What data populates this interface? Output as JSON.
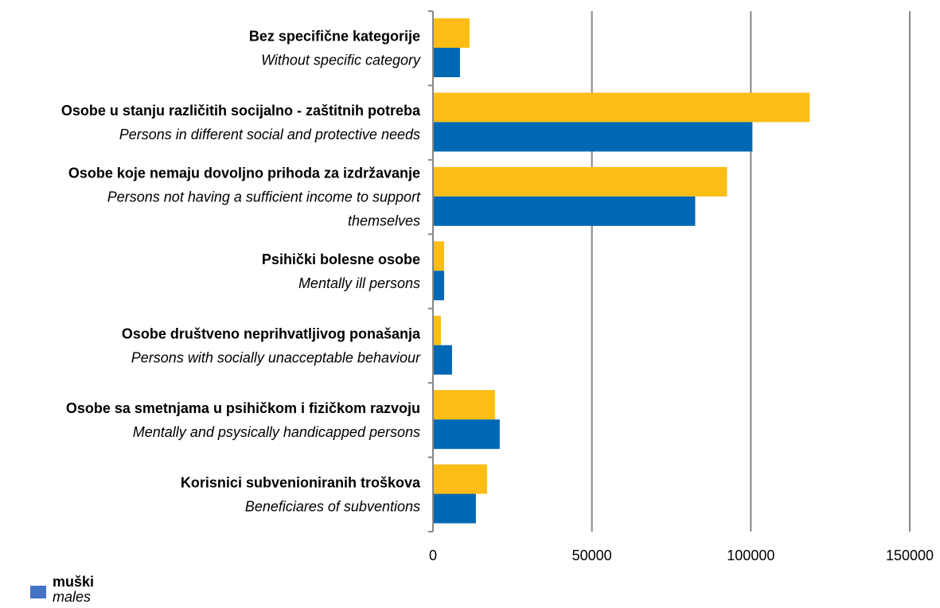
{
  "chart_data": {
    "type": "bar",
    "orientation": "horizontal",
    "categories": [
      {
        "main": "Bez specifične kategorije",
        "sub": [
          "Without specific category"
        ]
      },
      {
        "main": "Osobe u stanju različitih socijalno - zaštitnih potreba",
        "sub": [
          "Persons in different social and protective needs"
        ]
      },
      {
        "main": "Osobe koje nemaju dovoljno prihoda za izdržavanje",
        "sub": [
          "Persons not having a sufficient income to support",
          "themselves"
        ]
      },
      {
        "main": "Psihički bolesne osobe",
        "sub": [
          "Mentally ill persons"
        ]
      },
      {
        "main": "Osobe društveno neprihvatljivog ponašanja",
        "sub": [
          "Persons with socially unacceptable behaviour"
        ]
      },
      {
        "main": "Osobe sa smetnjama u psihičkom i fizičkom razvoju",
        "sub": [
          "Mentally and psysically handicapped persons"
        ]
      },
      {
        "main": "Korisnici subvenioniranih troškova",
        "sub": [
          "Beneficiares of subventions"
        ]
      }
    ],
    "series": [
      {
        "color": "#FDBD14",
        "values": [
          11500,
          118500,
          92500,
          3500,
          2500,
          19500,
          17000
        ]
      },
      {
        "name": "muški / males",
        "color": "#0068B4",
        "values": [
          8500,
          100500,
          82500,
          3500,
          6000,
          21000,
          13500
        ]
      }
    ],
    "xlim": [
      0,
      150000
    ],
    "xticks": [
      0,
      50000,
      100000,
      150000
    ],
    "xtick_labels": [
      "0",
      "50000",
      "100000",
      "150000"
    ],
    "grid": true,
    "legend_placement": "bottom-left"
  },
  "legend": {
    "main": "muški",
    "sub": "males",
    "color": "#4472C4"
  }
}
